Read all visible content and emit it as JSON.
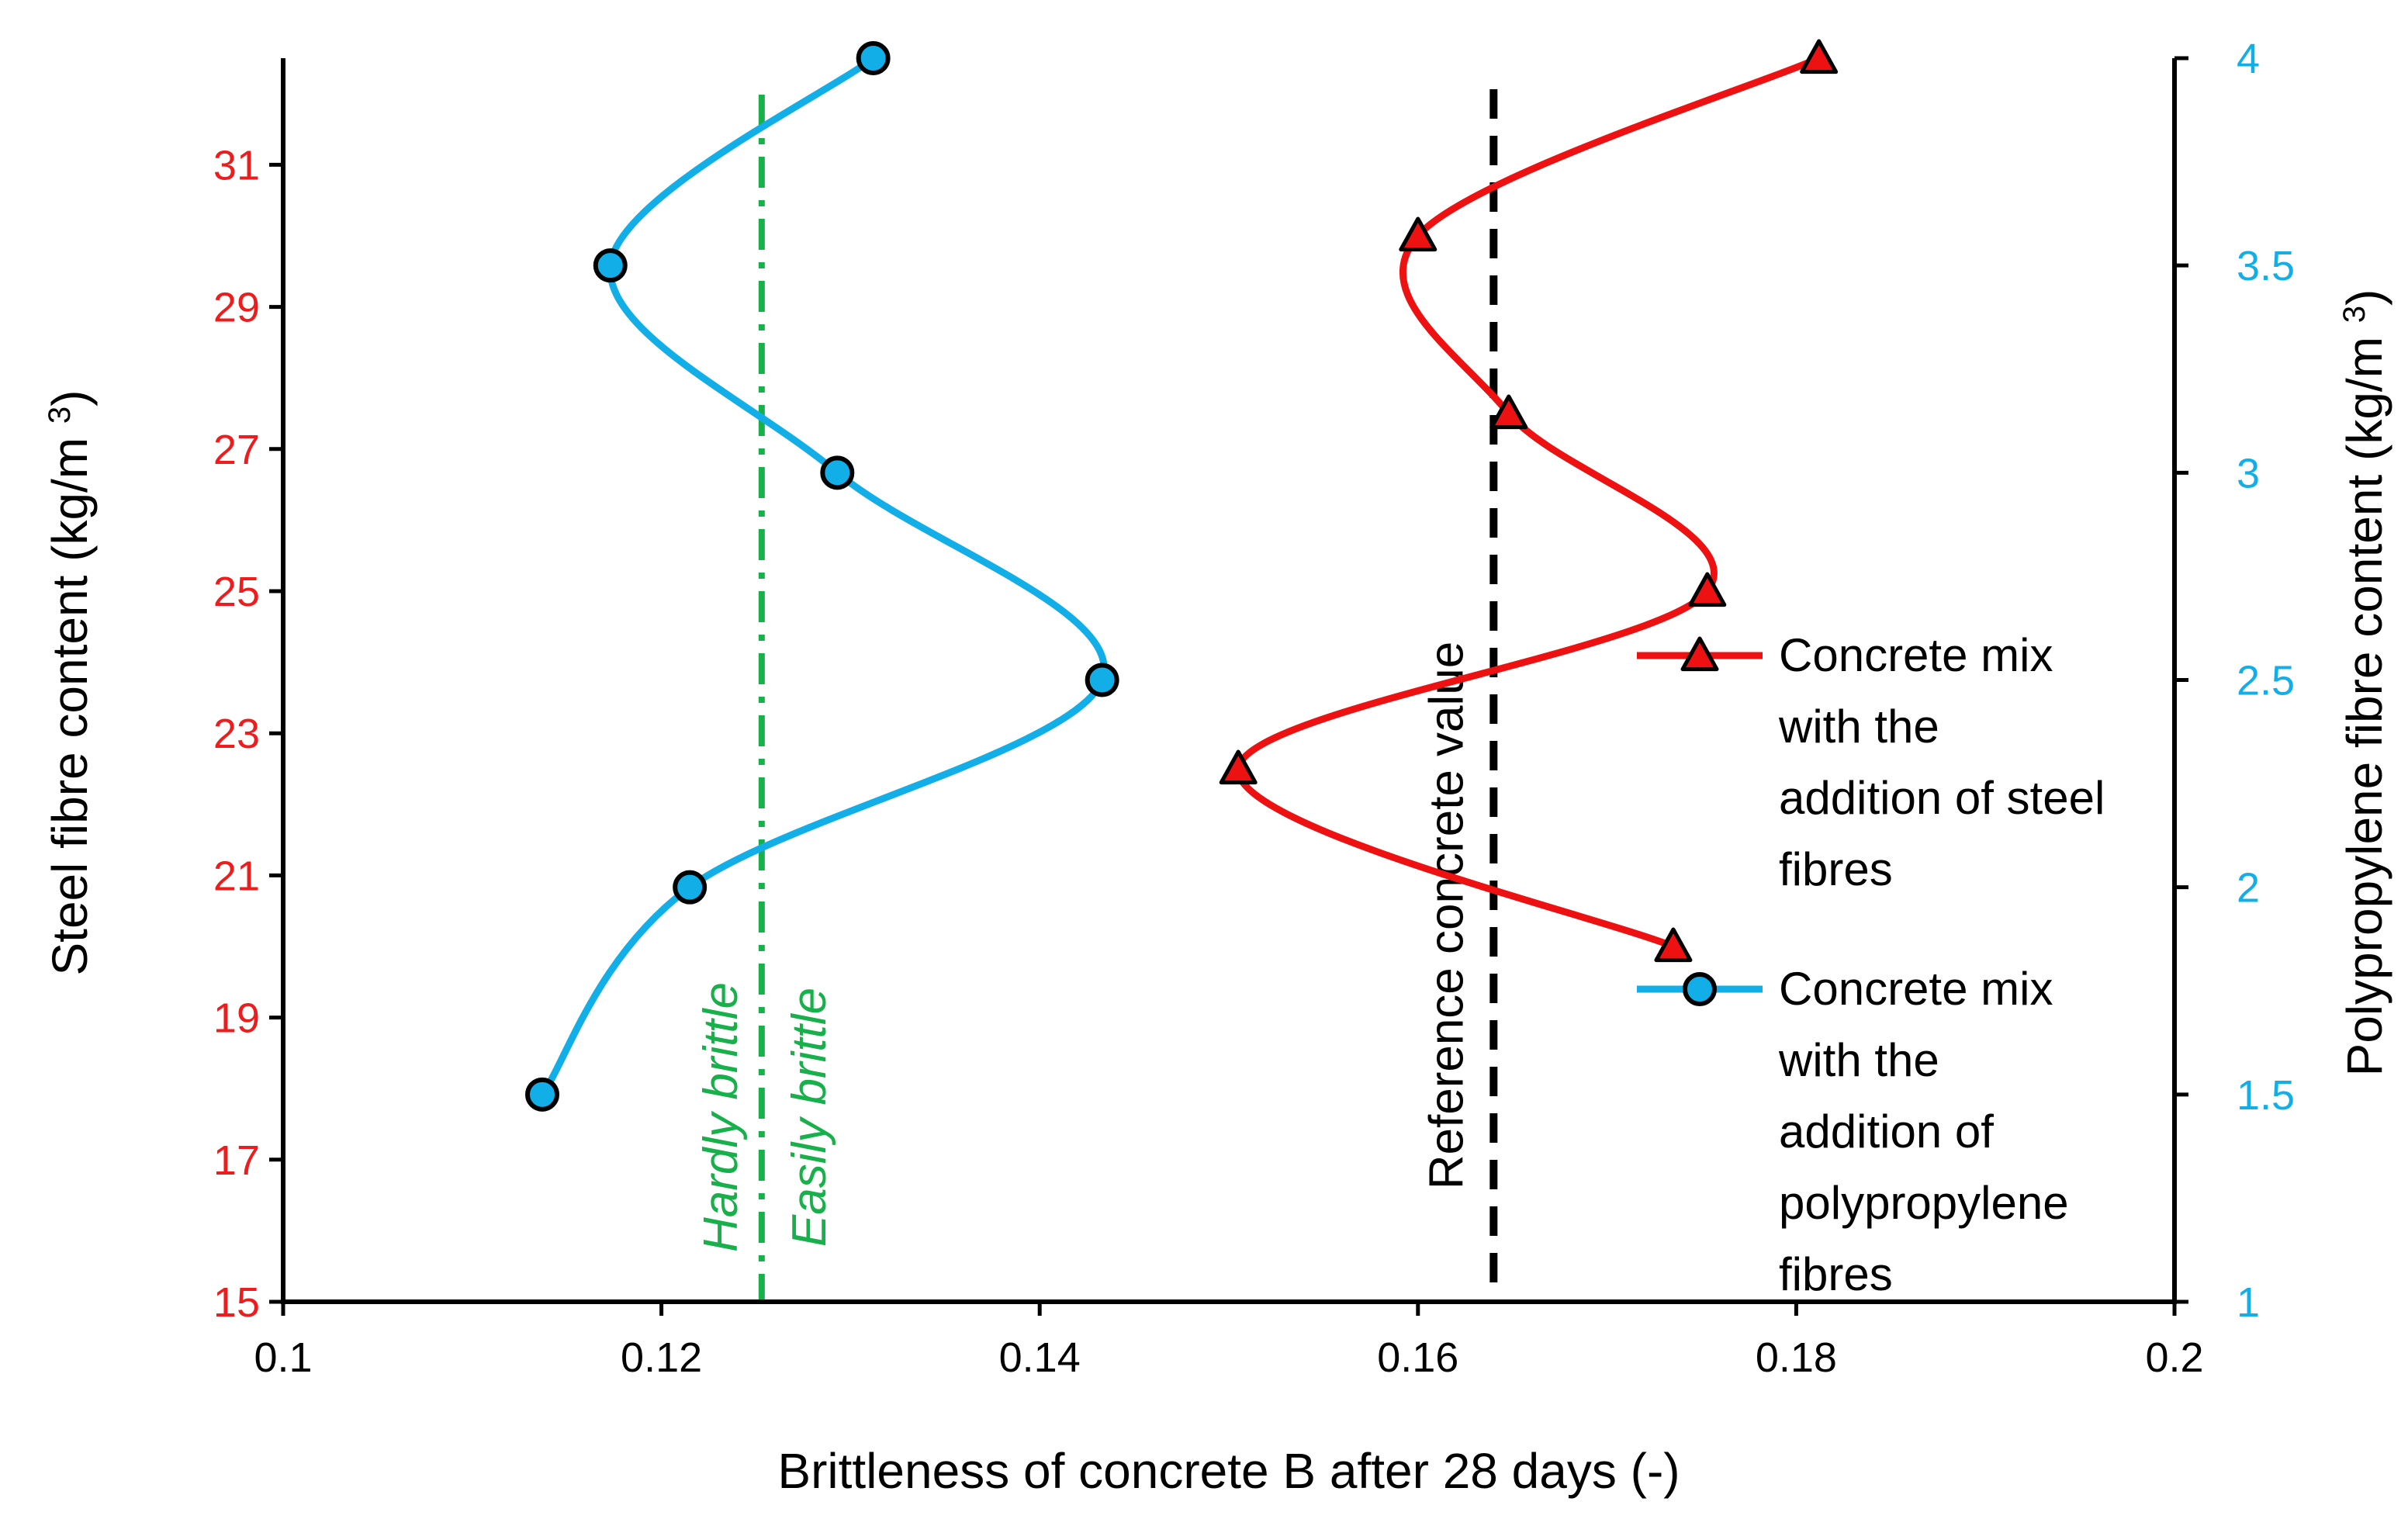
{
  "chart_data": {
    "type": "line",
    "xlabel": "Brittleness of concrete B after 28 days (-)",
    "x_axis": {
      "min": 0.1,
      "max": 0.2,
      "ticks": [
        0.1,
        0.12,
        0.14,
        0.16,
        0.18,
        0.2
      ],
      "tick_labels": [
        "0.1",
        "0.12",
        "0.14",
        "0.16",
        "0.18",
        "0.2"
      ]
    },
    "y_left": {
      "label": "Steel fibre content (kg/m³)",
      "min": 15,
      "max": 32.5,
      "ticks": [
        15,
        17,
        19,
        21,
        23,
        25,
        27,
        29,
        31
      ],
      "tick_labels": [
        "15",
        "17",
        "19",
        "21",
        "23",
        "25",
        "27",
        "29",
        "31"
      ],
      "color": "#ee1c1c"
    },
    "y_right": {
      "label": "Polypropylene fibre content (kg/m³)",
      "min": 1,
      "max": 4,
      "ticks": [
        1,
        1.5,
        2,
        2.5,
        3,
        3.5,
        4
      ],
      "tick_labels": [
        "1",
        "1.5",
        "2",
        "2.5",
        "3",
        "3.5",
        "4"
      ],
      "color": "#12aee8"
    },
    "series": [
      {
        "name": "Concrete mix with the addition of steel fibres",
        "legend_lines": [
          "Concrete mix",
          "with the",
          "addition of steel",
          "fibres"
        ],
        "axis": "left",
        "marker": "triangle",
        "color": "#ee1111",
        "points": [
          {
            "x": 0.1735,
            "y": 20.0
          },
          {
            "x": 0.1505,
            "y": 22.5
          },
          {
            "x": 0.1753,
            "y": 25.0
          },
          {
            "x": 0.1648,
            "y": 27.5
          },
          {
            "x": 0.16,
            "y": 30.0
          },
          {
            "x": 0.1812,
            "y": 32.5
          }
        ]
      },
      {
        "name": "Concrete mix with the addition of polypropylene fibres",
        "legend_lines": [
          "Concrete mix",
          "with the",
          "addition of",
          "polypropylene",
          "fibres"
        ],
        "axis": "right",
        "marker": "circle",
        "color": "#12aee8",
        "points": [
          {
            "x": 0.1137,
            "y": 1.5
          },
          {
            "x": 0.1215,
            "y": 2.0
          },
          {
            "x": 0.1433,
            "y": 2.5
          },
          {
            "x": 0.1293,
            "y": 3.0
          },
          {
            "x": 0.1173,
            "y": 3.5
          },
          {
            "x": 0.1312,
            "y": 4.0
          }
        ]
      }
    ],
    "reference_lines": [
      {
        "x": 0.164,
        "label": "Reference concrete value",
        "color": "#000000",
        "style": "dashed"
      },
      {
        "x": 0.1253,
        "label_left": "Hardly brittle",
        "label_right": "Easily brittle",
        "color": "#17b04a",
        "style": "dash-dot"
      }
    ]
  }
}
